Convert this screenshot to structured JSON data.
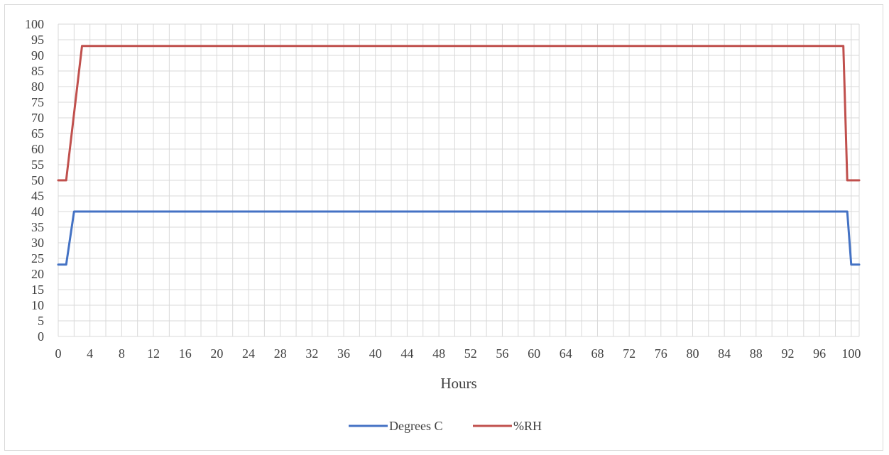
{
  "chart_data": {
    "type": "line",
    "title": "",
    "xlabel": "Hours",
    "ylabel": "",
    "xlim": [
      0,
      101
    ],
    "ylim": [
      0,
      100
    ],
    "x_ticks": [
      0,
      4,
      8,
      12,
      16,
      20,
      24,
      28,
      32,
      36,
      40,
      44,
      48,
      52,
      56,
      60,
      64,
      68,
      72,
      76,
      80,
      84,
      88,
      92,
      96,
      100
    ],
    "y_ticks": [
      0,
      5,
      10,
      15,
      20,
      25,
      30,
      35,
      40,
      45,
      50,
      55,
      60,
      65,
      70,
      75,
      80,
      85,
      90,
      95,
      100
    ],
    "grid": true,
    "legend_position": "bottom",
    "series": [
      {
        "name": "Degrees C",
        "color": "#4472c4",
        "x": [
          0,
          1,
          2,
          99.5,
          100,
          101
        ],
        "y": [
          23,
          23,
          40,
          40,
          23,
          23
        ]
      },
      {
        "name": "%RH",
        "color": "#c0504d",
        "x": [
          0,
          1,
          3,
          99,
          99.5,
          101
        ],
        "y": [
          50,
          50,
          93,
          93,
          50,
          50
        ]
      }
    ]
  }
}
